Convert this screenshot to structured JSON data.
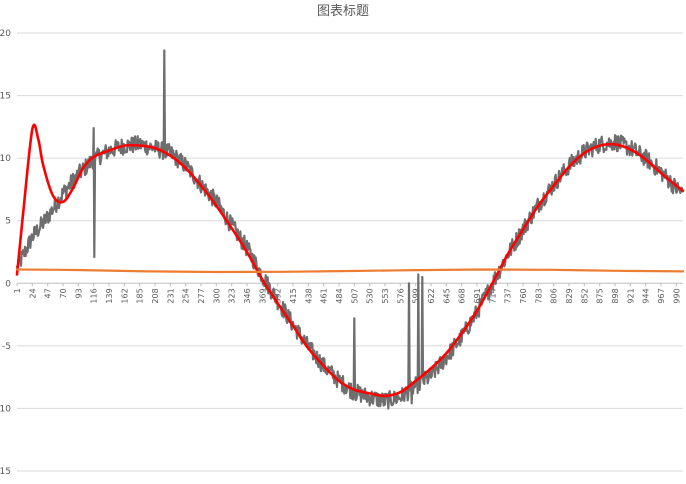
{
  "chart_data": {
    "type": "line",
    "title": "图表标题",
    "xlabel": "",
    "ylabel": "",
    "ylim": [
      -15,
      20
    ],
    "yticks": [
      20,
      15,
      10,
      5,
      0,
      -5,
      -10,
      -15
    ],
    "xlim": [
      1,
      1000
    ],
    "xticks": [
      1,
      24,
      47,
      70,
      93,
      116,
      139,
      162,
      185,
      208,
      231,
      254,
      277,
      300,
      323,
      346,
      369,
      392,
      415,
      438,
      461,
      484,
      507,
      530,
      553,
      576,
      599,
      622,
      645,
      668,
      691,
      714,
      737,
      760,
      783,
      806,
      829,
      852,
      875,
      898,
      921,
      944,
      967,
      990
    ],
    "grid": true,
    "legend": "none",
    "series": [
      {
        "color": "#6e6e6e",
        "x": [
          1,
          24,
          47,
          70,
          93,
          116,
          139,
          162,
          185,
          208,
          231,
          254,
          277,
          300,
          323,
          346,
          369,
          392,
          415,
          438,
          461,
          484,
          507,
          530,
          553,
          576,
          599,
          622,
          645,
          668,
          691,
          714,
          737,
          760,
          783,
          806,
          829,
          852,
          875,
          898,
          921,
          944,
          967,
          990,
          1000
        ],
        "y": [
          1.2,
          3.7,
          5.3,
          7.2,
          8.7,
          9.9,
          10.6,
          11.0,
          11.1,
          10.8,
          10.4,
          9.4,
          7.9,
          6.5,
          4.6,
          2.8,
          0.6,
          -1.4,
          -3.3,
          -5.1,
          -6.6,
          -7.8,
          -8.7,
          -9.1,
          -9.4,
          -9.1,
          -8.2,
          -7.4,
          -5.9,
          -4.3,
          -2.3,
          0.0,
          2.3,
          4.3,
          6.3,
          7.9,
          9.4,
          10.5,
          11.1,
          11.3,
          10.8,
          10.0,
          8.9,
          7.6,
          7.2
        ],
        "spikes": [
          {
            "x": 116,
            "y": 12.4
          },
          {
            "x": 117,
            "y": 2.1
          },
          {
            "x": 222,
            "y": 18.6
          },
          {
            "x": 507,
            "y": -2.8
          },
          {
            "x": 589,
            "y": 0.0
          },
          {
            "x": 593,
            "y": -9.6
          },
          {
            "x": 603,
            "y": 0.7
          },
          {
            "x": 609,
            "y": 0.5
          }
        ]
      },
      {
        "color": "#ff0000",
        "x": [
          1,
          10,
          24,
          33,
          40,
          55,
          70,
          85,
          100,
          116,
          139,
          162,
          185,
          208,
          231,
          254,
          277,
          300,
          323,
          346,
          369,
          392,
          415,
          438,
          461,
          484,
          507,
          530,
          553,
          576,
          599,
          622,
          645,
          668,
          691,
          714,
          737,
          760,
          783,
          806,
          829,
          852,
          875,
          898,
          921,
          944,
          967,
          990,
          1000
        ],
        "y": [
          0.7,
          5.5,
          12.3,
          11.5,
          9.5,
          7.0,
          6.5,
          7.6,
          9.2,
          10.1,
          10.6,
          11.0,
          11.0,
          10.8,
          10.2,
          9.2,
          7.8,
          6.2,
          4.4,
          2.5,
          0.3,
          -1.6,
          -3.4,
          -5.2,
          -6.6,
          -7.8,
          -8.5,
          -8.8,
          -9.0,
          -8.7,
          -7.8,
          -6.8,
          -5.6,
          -4.0,
          -2.2,
          0.0,
          2.3,
          4.3,
          6.2,
          7.8,
          9.3,
          10.4,
          11.0,
          11.1,
          10.7,
          9.9,
          8.8,
          7.8,
          7.4
        ]
      },
      {
        "color": "#ed7d31",
        "x": [
          1,
          100,
          200,
          300,
          400,
          500,
          600,
          700,
          800,
          900,
          1000
        ],
        "y": [
          1.1,
          1.05,
          0.95,
          0.9,
          0.92,
          0.98,
          1.05,
          1.1,
          1.08,
          1.0,
          0.95
        ]
      }
    ]
  }
}
